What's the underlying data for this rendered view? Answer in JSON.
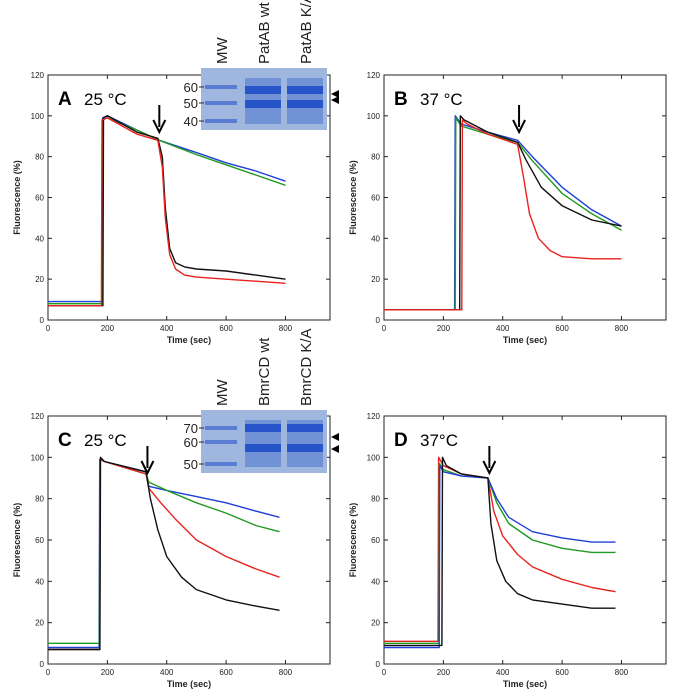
{
  "axes": {
    "ylabel": "Fluorescence (%)",
    "xlabel": "Time (sec)"
  },
  "colors": {
    "black": "#111111",
    "red": "#e8231f",
    "green": "#1f9a1f",
    "blue": "#1f3fd6",
    "gel_bg": "#9fb6de",
    "gel_band": "#1f4fc8"
  },
  "chart_data": [
    {
      "type": "line",
      "panel": "A",
      "temperature": "25 °C",
      "xlabel": "Time (sec)",
      "ylabel": "Fluorescence (%)",
      "xlim": [
        0,
        950
      ],
      "ylim": [
        0,
        120
      ],
      "xticks": [
        0,
        200,
        400,
        600,
        800
      ],
      "yticks": [
        0,
        20,
        40,
        60,
        80,
        100,
        120
      ],
      "arrow_x": 375,
      "series": [
        {
          "name": "blue",
          "color": "blue",
          "x": [
            0,
            182,
            184,
            200,
            300,
            375,
            500,
            600,
            700,
            800
          ],
          "y": [
            9,
            9,
            99,
            100,
            93,
            88,
            82,
            77,
            73,
            68
          ]
        },
        {
          "name": "green",
          "color": "green",
          "x": [
            0,
            183,
            185,
            200,
            300,
            375,
            500,
            600,
            700,
            800
          ],
          "y": [
            8,
            8,
            98,
            99,
            93,
            88,
            81,
            76,
            71,
            66
          ]
        },
        {
          "name": "black",
          "color": "black",
          "x": [
            0,
            185,
            187,
            200,
            300,
            370,
            385,
            395,
            410,
            430,
            460,
            500,
            600,
            700,
            800
          ],
          "y": [
            7,
            7,
            99,
            100,
            92,
            89,
            80,
            55,
            35,
            28,
            26,
            25,
            24,
            22,
            20
          ]
        },
        {
          "name": "red",
          "color": "red",
          "x": [
            0,
            180,
            182,
            200,
            300,
            370,
            385,
            395,
            410,
            430,
            460,
            500,
            600,
            700,
            800
          ],
          "y": [
            7,
            7,
            98,
            99,
            91,
            88,
            75,
            50,
            32,
            25,
            22,
            21,
            20,
            19,
            18
          ]
        }
      ],
      "gel": {
        "lanes": [
          "MW",
          "PatAB wt",
          "PatAB K/A"
        ],
        "markers": [
          "60",
          "50",
          "40"
        ],
        "arrowheads": 2
      }
    },
    {
      "type": "line",
      "panel": "B",
      "temperature": "37 °C",
      "xlabel": "Time (sec)",
      "ylabel": "Fluorescence (%)",
      "xlim": [
        0,
        950
      ],
      "ylim": [
        0,
        120
      ],
      "xticks": [
        0,
        200,
        400,
        600,
        800
      ],
      "yticks": [
        0,
        20,
        40,
        60,
        80,
        100,
        120
      ],
      "arrow_x": 455,
      "series": [
        {
          "name": "blue",
          "color": "blue",
          "x": [
            0,
            238,
            240,
            260,
            350,
            450,
            500,
            600,
            700,
            800
          ],
          "y": [
            5,
            5,
            100,
            96,
            92,
            88,
            80,
            65,
            54,
            46
          ]
        },
        {
          "name": "green",
          "color": "green",
          "x": [
            0,
            240,
            242,
            260,
            350,
            450,
            500,
            600,
            700,
            800
          ],
          "y": [
            5,
            5,
            99,
            95,
            91,
            87,
            78,
            62,
            52,
            44
          ]
        },
        {
          "name": "black",
          "color": "black",
          "x": [
            0,
            255,
            257,
            270,
            350,
            450,
            480,
            530,
            600,
            700,
            800
          ],
          "y": [
            5,
            5,
            100,
            98,
            92,
            87,
            78,
            65,
            56,
            49,
            46
          ]
        },
        {
          "name": "red",
          "color": "red",
          "x": [
            0,
            262,
            264,
            280,
            350,
            450,
            470,
            490,
            520,
            560,
            600,
            700,
            800
          ],
          "y": [
            5,
            5,
            98,
            96,
            91,
            86,
            70,
            52,
            40,
            34,
            31,
            30,
            30
          ]
        }
      ]
    },
    {
      "type": "line",
      "panel": "C",
      "temperature": "25 °C",
      "xlabel": "Time (sec)",
      "ylabel": "Fluorescence (%)",
      "xlim": [
        0,
        950
      ],
      "ylim": [
        0,
        120
      ],
      "xticks": [
        0,
        200,
        400,
        600,
        800
      ],
      "yticks": [
        0,
        20,
        40,
        60,
        80,
        100,
        120
      ],
      "arrow_x": 335,
      "series": [
        {
          "name": "blue",
          "color": "blue",
          "x": [
            0,
            172,
            174,
            190,
            330,
            340,
            400,
            500,
            600,
            700,
            780
          ],
          "y": [
            8,
            8,
            99,
            98,
            93,
            86,
            84,
            81,
            78,
            74,
            71
          ]
        },
        {
          "name": "green",
          "color": "green",
          "x": [
            0,
            173,
            175,
            190,
            330,
            340,
            400,
            500,
            600,
            700,
            780
          ],
          "y": [
            10,
            10,
            99,
            98,
            92,
            88,
            84,
            78,
            73,
            67,
            64
          ]
        },
        {
          "name": "red",
          "color": "red",
          "x": [
            0,
            174,
            176,
            190,
            330,
            340,
            380,
            430,
            500,
            600,
            700,
            780
          ],
          "y": [
            7,
            7,
            99,
            98,
            92,
            85,
            78,
            70,
            60,
            52,
            46,
            42
          ]
        },
        {
          "name": "black",
          "color": "black",
          "x": [
            0,
            175,
            177,
            190,
            330,
            345,
            370,
            400,
            450,
            500,
            600,
            700,
            780
          ],
          "y": [
            7,
            7,
            100,
            98,
            93,
            80,
            65,
            52,
            42,
            36,
            31,
            28,
            26
          ]
        }
      ],
      "gel": {
        "lanes": [
          "MW",
          "BmrCD wt",
          "BmrCD K/A"
        ],
        "markers": [
          "70",
          "60",
          "50"
        ],
        "arrowheads": 2
      }
    },
    {
      "type": "line",
      "panel": "D",
      "temperature": "37°C",
      "xlabel": "Time (sec)",
      "ylabel": "Fluorescence (%)",
      "xlim": [
        0,
        950
      ],
      "ylim": [
        0,
        120
      ],
      "xticks": [
        0,
        200,
        400,
        600,
        800
      ],
      "yticks": [
        0,
        20,
        40,
        60,
        80,
        100,
        120
      ],
      "arrow_x": 355,
      "series": [
        {
          "name": "red",
          "color": "red",
          "x": [
            0,
            182,
            184,
            200,
            260,
            350,
            370,
            400,
            450,
            500,
            600,
            700,
            780
          ],
          "y": [
            11,
            11,
            100,
            96,
            92,
            90,
            74,
            62,
            53,
            47,
            41,
            37,
            35
          ]
        },
        {
          "name": "green",
          "color": "green",
          "x": [
            0,
            185,
            187,
            200,
            260,
            350,
            380,
            420,
            500,
            600,
            700,
            780
          ],
          "y": [
            10,
            10,
            97,
            94,
            91,
            90,
            78,
            68,
            60,
            56,
            54,
            54
          ]
        },
        {
          "name": "blue",
          "color": "blue",
          "x": [
            0,
            186,
            188,
            200,
            260,
            350,
            380,
            420,
            500,
            600,
            700,
            780
          ],
          "y": [
            8,
            8,
            96,
            93,
            91,
            90,
            80,
            71,
            64,
            61,
            59,
            59
          ]
        },
        {
          "name": "black",
          "color": "black",
          "x": [
            0,
            195,
            197,
            210,
            260,
            350,
            360,
            380,
            410,
            450,
            500,
            600,
            700,
            780
          ],
          "y": [
            9,
            9,
            100,
            96,
            92,
            90,
            68,
            50,
            40,
            34,
            31,
            29,
            27,
            27
          ]
        }
      ]
    }
  ]
}
